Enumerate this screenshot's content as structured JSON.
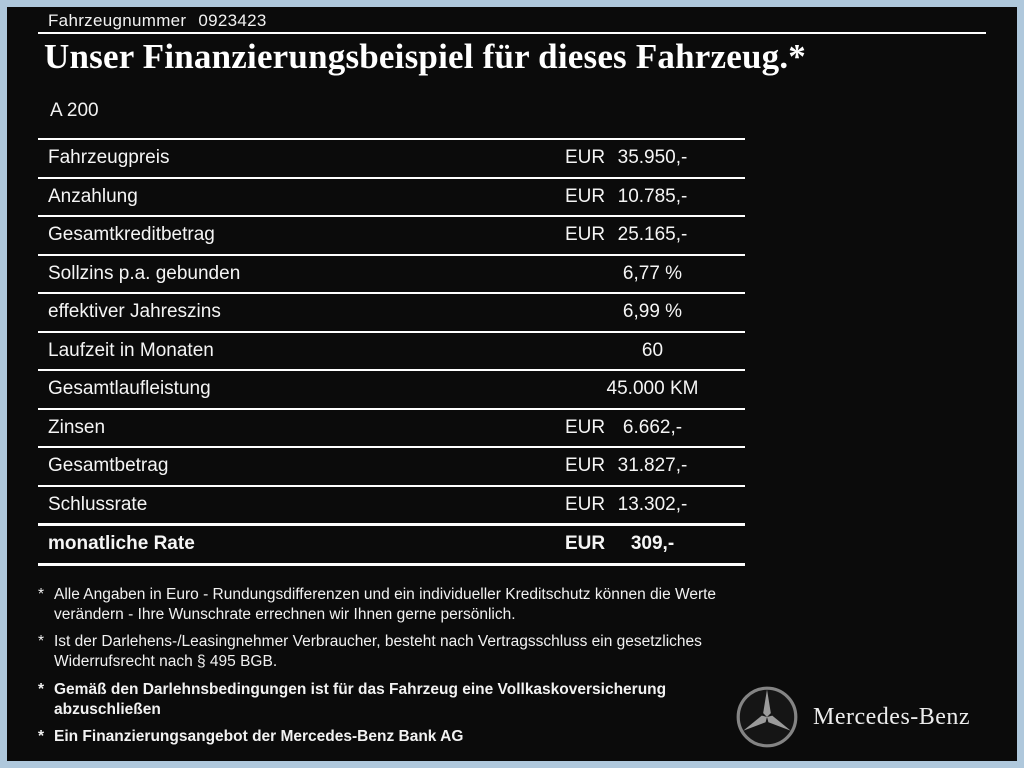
{
  "header": {
    "vehicle_number_label": "Fahrzeugnummer",
    "vehicle_number": "0923423",
    "title": "Unser Finanzierungsbeispiel für dieses Fahrzeug.*",
    "model": "A 200"
  },
  "table": {
    "rows": [
      {
        "label": "Fahrzeugpreis",
        "currency": "EUR",
        "value": "35.950,-",
        "emphasis": false
      },
      {
        "label": "Anzahlung",
        "currency": "EUR",
        "value": "10.785,-",
        "emphasis": false
      },
      {
        "label": "Gesamtkreditbetrag",
        "currency": "EUR",
        "value": "25.165,-",
        "emphasis": false
      },
      {
        "label": "Sollzins p.a. gebunden",
        "currency": "",
        "value": "6,77 %",
        "emphasis": false
      },
      {
        "label": "effektiver Jahreszins",
        "currency": "",
        "value": "6,99 %",
        "emphasis": false
      },
      {
        "label": "Laufzeit in Monaten",
        "currency": "",
        "value": "60",
        "emphasis": false
      },
      {
        "label": "Gesamtlaufleistung",
        "currency": "",
        "value": "45.000 KM",
        "emphasis": false
      },
      {
        "label": "Zinsen",
        "currency": "EUR",
        "value": "6.662,-",
        "emphasis": false
      },
      {
        "label": "Gesamtbetrag",
        "currency": "EUR",
        "value": "31.827,-",
        "emphasis": false
      },
      {
        "label": "Schlussrate",
        "currency": "EUR",
        "value": "13.302,-",
        "emphasis": false
      },
      {
        "label": "monatliche Rate",
        "currency": "EUR",
        "value": "309,-",
        "emphasis": true
      }
    ]
  },
  "footnotes": [
    {
      "marker": "*",
      "text": "Alle Angaben in Euro - Rundungsdifferenzen und ein individueller Kreditschutz können die Werte verändern - Ihre Wunschrate errechnen wir Ihnen gerne persönlich.",
      "bold": false
    },
    {
      "marker": "*",
      "text": "Ist der Darlehens-/Leasingnehmer Verbraucher, besteht nach Vertragsschluss ein gesetzliches Widerrufsrecht nach § 495 BGB.",
      "bold": false
    },
    {
      "marker": "*",
      "text": "Gemäß den Darlehnsbedingungen ist für das Fahrzeug eine Vollkaskoversicherung abzuschließen",
      "bold": true
    },
    {
      "marker": "*",
      "text": "Ein Finanzierungsangebot der Mercedes-Benz Bank AG",
      "bold": true
    }
  ],
  "brand": {
    "name": "Mercedes-Benz"
  },
  "colors": {
    "border": "#afc8dc",
    "background": "#0b0b0b",
    "text": "#f5f5f5",
    "rule": "#ffffff"
  }
}
